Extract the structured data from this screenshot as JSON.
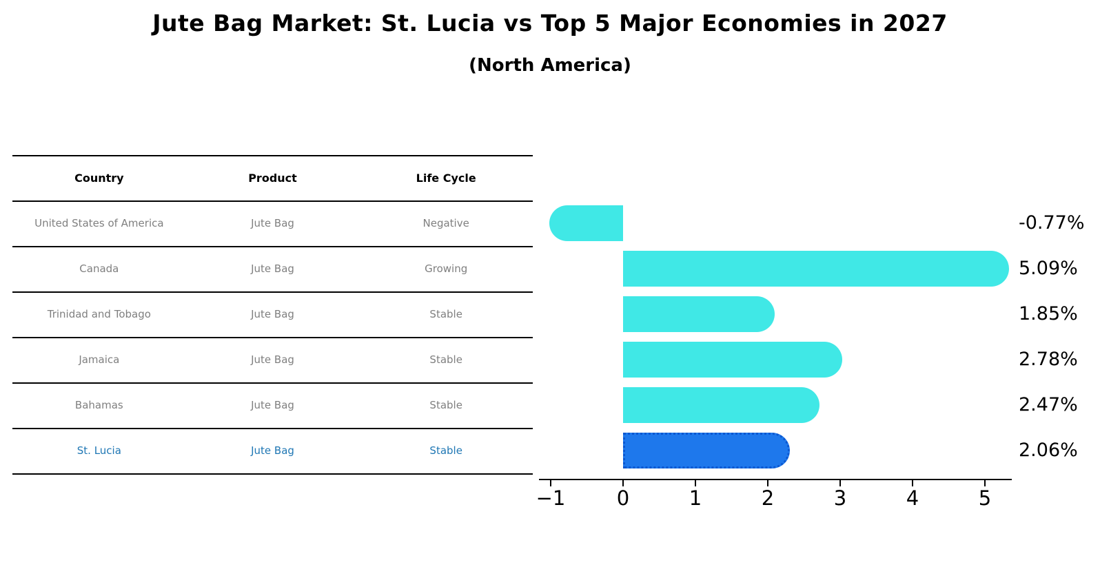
{
  "title": "Jute Bag Market: St. Lucia vs Top 5 Major Economies in 2027",
  "subtitle": "(North America)",
  "table": {
    "headers": [
      "Country",
      "Product",
      "Life Cycle"
    ],
    "rows": [
      {
        "country": "United States of America",
        "product": "Jute Bag",
        "life_cycle": "Negative",
        "highlight": false
      },
      {
        "country": "Canada",
        "product": "Jute Bag",
        "life_cycle": "Growing",
        "highlight": false
      },
      {
        "country": "Trinidad and Tobago",
        "product": "Jute Bag",
        "life_cycle": "Stable",
        "highlight": false
      },
      {
        "country": "Jamaica",
        "product": "Jute Bag",
        "life_cycle": "Stable",
        "highlight": false
      },
      {
        "country": "Bahamas",
        "product": "Jute Bag",
        "life_cycle": "Stable",
        "highlight": false
      },
      {
        "country": "St. Lucia",
        "product": "Jute Bag",
        "life_cycle": "Stable",
        "highlight": true
      }
    ]
  },
  "chart_data": {
    "type": "bar",
    "orientation": "horizontal",
    "title": "Jute Bag Market: St. Lucia vs Top 5 Major Economies in 2027",
    "subtitle": "(North America)",
    "categories": [
      "United States of America",
      "Canada",
      "Trinidad and Tobago",
      "Jamaica",
      "Bahamas",
      "St. Lucia"
    ],
    "values": [
      -0.77,
      5.09,
      1.85,
      2.78,
      2.47,
      2.06
    ],
    "value_labels": [
      "-0.77%",
      "5.09%",
      "1.85%",
      "2.78%",
      "2.47%",
      "2.06%"
    ],
    "highlight_category": "St. Lucia",
    "x_tick_values": [
      -1,
      0,
      1,
      2,
      3,
      4,
      5
    ],
    "x_tick_labels": [
      "−1",
      "0",
      "1",
      "2",
      "3",
      "4",
      "5"
    ],
    "xlim": [
      -1.2,
      5.4
    ],
    "grid": false,
    "legend": "none",
    "colors": {
      "bar": "#40e8e6",
      "highlight_bar": "#1e78ec",
      "highlight_border": "#0b57d0",
      "highlight_text": "#1f77b4",
      "row_text": "#7f7f7f",
      "axis": "#000000",
      "value_text": "#000000"
    }
  }
}
